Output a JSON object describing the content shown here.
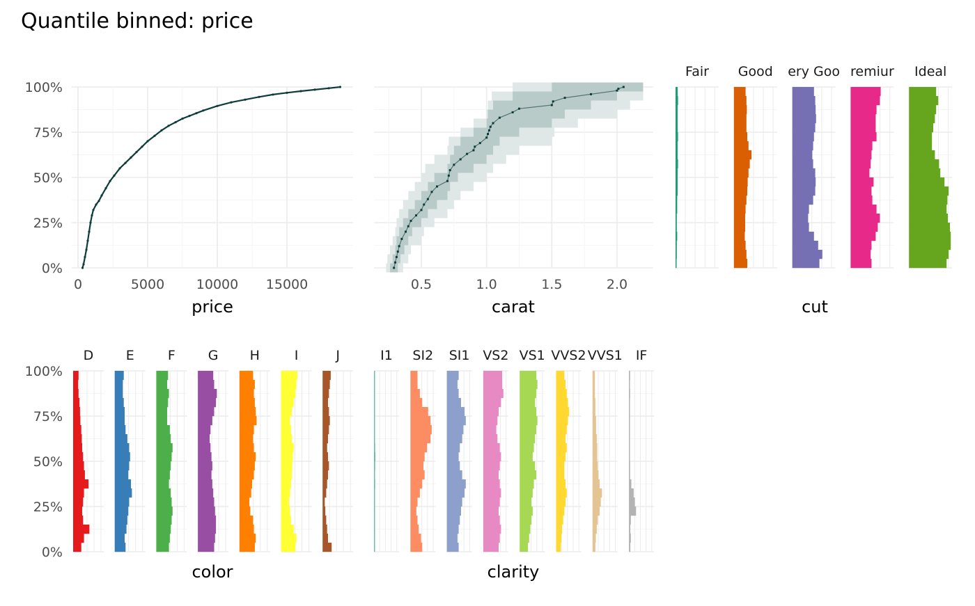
{
  "title": "Quantile binned: price",
  "colors": {
    "ink": "#0d3b3b",
    "ribbon_light": "#dfe8e6",
    "ribbon_mid": "#b3c6c3",
    "grid_major": "#ebebeb",
    "grid_minor": "#f5f5f5",
    "cut": [
      "#1b9e77",
      "#d95f02",
      "#7570b3",
      "#e7298a",
      "#66a61e"
    ],
    "color": [
      "#e41a1c",
      "#377eb8",
      "#4daf4a",
      "#984ea3",
      "#ff7f00",
      "#ffff33",
      "#a65628"
    ],
    "clarity": [
      "#66c2a5",
      "#fc8d62",
      "#8da0cb",
      "#e78ac3",
      "#a6d854",
      "#ffd92f",
      "#e5c494",
      "#b3b3b3"
    ]
  },
  "chart_data": [
    {
      "type": "line",
      "panel": "price",
      "xlabel": "price",
      "ylabel": "",
      "xlim": [
        0,
        19000
      ],
      "ylim": [
        0,
        1
      ],
      "x_ticks": [
        0,
        5000,
        10000,
        15000
      ],
      "x_tick_labels": [
        "0",
        "5000",
        "10000",
        "15000"
      ],
      "y_ticks": [
        0,
        0.25,
        0.5,
        0.75,
        1
      ],
      "y_tick_labels": [
        "0%",
        "25%",
        "50%",
        "75%",
        "100%"
      ],
      "x": [
        326,
        400,
        500,
        600,
        700,
        800,
        900,
        1000,
        1100,
        1300,
        1500,
        1700,
        2000,
        2300,
        2600,
        3000,
        3400,
        3800,
        4200,
        4600,
        5000,
        5500,
        6000,
        6500,
        7000,
        7500,
        8000,
        8500,
        9000,
        10000,
        11000,
        12000,
        13000,
        14000,
        15000,
        16000,
        17000,
        18000,
        18823
      ],
      "y": [
        0,
        0.02,
        0.06,
        0.1,
        0.15,
        0.2,
        0.25,
        0.29,
        0.32,
        0.35,
        0.37,
        0.4,
        0.44,
        0.48,
        0.51,
        0.55,
        0.58,
        0.61,
        0.64,
        0.67,
        0.7,
        0.73,
        0.76,
        0.785,
        0.805,
        0.825,
        0.84,
        0.855,
        0.87,
        0.895,
        0.915,
        0.93,
        0.945,
        0.958,
        0.968,
        0.977,
        0.985,
        0.993,
        1
      ]
    },
    {
      "type": "scatter",
      "panel": "carat",
      "xlabel": "carat",
      "ylabel": "",
      "xlim": [
        0.2,
        2.3
      ],
      "ylim": [
        0,
        1
      ],
      "x_ticks": [
        0.5,
        1.0,
        1.5,
        2.0
      ],
      "x_tick_labels": [
        "0.5",
        "1.0",
        "1.5",
        "2.0"
      ],
      "median_x": [
        0.29,
        0.3,
        0.31,
        0.32,
        0.33,
        0.35,
        0.38,
        0.4,
        0.42,
        0.46,
        0.5,
        0.52,
        0.55,
        0.58,
        0.62,
        0.7,
        0.71,
        0.72,
        0.75,
        0.8,
        0.85,
        0.9,
        0.91,
        0.95,
        1.0,
        1.01,
        1.02,
        1.03,
        1.05,
        1.1,
        1.2,
        1.25,
        1.5,
        1.51,
        1.6,
        1.8,
        2.0,
        2.01,
        2.05
      ],
      "median_y": [
        0,
        0.03,
        0.06,
        0.09,
        0.12,
        0.16,
        0.2,
        0.23,
        0.26,
        0.29,
        0.32,
        0.35,
        0.38,
        0.42,
        0.45,
        0.48,
        0.51,
        0.54,
        0.57,
        0.6,
        0.63,
        0.65,
        0.67,
        0.69,
        0.72,
        0.74,
        0.76,
        0.78,
        0.8,
        0.83,
        0.86,
        0.88,
        0.9,
        0.92,
        0.94,
        0.96,
        0.98,
        0.99,
        1
      ],
      "band50_lo": [
        0.26,
        0.28,
        0.3,
        0.31,
        0.33,
        0.36,
        0.4,
        0.45,
        0.5,
        0.55,
        0.6,
        0.7,
        0.72,
        0.75,
        0.8,
        0.9,
        1.0,
        1.01,
        1.05,
        1.2,
        1.5
      ],
      "band50_hi": [
        0.32,
        0.34,
        0.37,
        0.4,
        0.43,
        0.5,
        0.55,
        0.62,
        0.7,
        0.72,
        0.78,
        0.9,
        1.0,
        1.05,
        1.1,
        1.25,
        1.5,
        1.6,
        1.8,
        2.0,
        2.2
      ],
      "band90_lo": [
        0.23,
        0.24,
        0.26,
        0.28,
        0.3,
        0.31,
        0.33,
        0.36,
        0.4,
        0.45,
        0.5,
        0.53,
        0.6,
        0.7,
        0.71,
        0.8,
        0.9,
        1.0,
        1.01,
        1.04,
        1.2
      ],
      "band90_hi": [
        0.36,
        0.4,
        0.42,
        0.5,
        0.52,
        0.6,
        0.7,
        0.75,
        0.8,
        0.9,
        1.0,
        1.05,
        1.15,
        1.25,
        1.5,
        1.52,
        1.7,
        2.0,
        2.1,
        2.2,
        2.2
      ],
      "band_y": [
        0,
        0.05,
        0.1,
        0.15,
        0.2,
        0.25,
        0.3,
        0.35,
        0.4,
        0.45,
        0.5,
        0.55,
        0.6,
        0.65,
        0.7,
        0.75,
        0.8,
        0.85,
        0.9,
        0.95,
        1
      ]
    },
    {
      "type": "bar",
      "panel": "cut",
      "xlabel": "cut",
      "categories": [
        "Fair",
        "Good",
        "Very Good",
        "Premium",
        "Ideal"
      ],
      "strip_labels": [
        "Fair",
        "Good",
        "ery Goo",
        "remiur",
        "Ideal"
      ],
      "y_bins": [
        0,
        0.05,
        0.1,
        0.15,
        0.2,
        0.25,
        0.3,
        0.35,
        0.4,
        0.45,
        0.5,
        0.55,
        0.6,
        0.65,
        0.7,
        0.75,
        0.8,
        0.85,
        0.9,
        0.95
      ],
      "max_share": 1,
      "shares": [
        [
          0.02,
          0.03,
          0.03,
          0.04,
          0.03,
          0.03,
          0.04,
          0.04,
          0.05,
          0.05,
          0.05,
          0.06,
          0.05,
          0.05,
          0.06,
          0.05,
          0.05,
          0.05,
          0.06,
          0.05
        ],
        [
          0.32,
          0.3,
          0.28,
          0.26,
          0.27,
          0.27,
          0.28,
          0.3,
          0.32,
          0.33,
          0.35,
          0.38,
          0.42,
          0.35,
          0.32,
          0.3,
          0.3,
          0.31,
          0.3,
          0.28
        ],
        [
          0.65,
          0.72,
          0.62,
          0.52,
          0.4,
          0.38,
          0.4,
          0.5,
          0.55,
          0.56,
          0.55,
          0.5,
          0.48,
          0.5,
          0.52,
          0.55,
          0.57,
          0.56,
          0.55,
          0.52
        ],
        [
          0.5,
          0.48,
          0.5,
          0.6,
          0.65,
          0.7,
          0.62,
          0.52,
          0.5,
          0.55,
          0.45,
          0.48,
          0.5,
          0.52,
          0.62,
          0.6,
          0.6,
          0.62,
          0.7,
          0.72
        ],
        [
          0.9,
          0.95,
          1.0,
          1.0,
          0.98,
          0.93,
          0.9,
          0.92,
          0.95,
          0.85,
          0.75,
          0.72,
          0.62,
          0.55,
          0.55,
          0.58,
          0.62,
          0.65,
          0.7,
          0.65
        ]
      ]
    },
    {
      "type": "bar",
      "panel": "color",
      "xlabel": "color",
      "categories": [
        "D",
        "E",
        "F",
        "G",
        "H",
        "I",
        "J"
      ],
      "strip_labels": [
        "D",
        "E",
        "F",
        "G",
        "H",
        "I",
        "J"
      ],
      "y_bins": [
        0,
        0.05,
        0.1,
        0.15,
        0.2,
        0.25,
        0.3,
        0.35,
        0.4,
        0.45,
        0.5,
        0.55,
        0.6,
        0.65,
        0.7,
        0.75,
        0.8,
        0.85,
        0.9,
        0.95
      ],
      "max_share": 1,
      "shares": [
        [
          0.45,
          0.6,
          0.9,
          0.55,
          0.5,
          0.55,
          0.6,
          0.85,
          0.65,
          0.6,
          0.55,
          0.5,
          0.48,
          0.45,
          0.4,
          0.38,
          0.35,
          0.3,
          0.28,
          0.3
        ],
        [
          0.6,
          0.55,
          0.65,
          0.7,
          0.75,
          0.8,
          0.95,
          0.9,
          0.75,
          0.8,
          0.85,
          0.8,
          0.7,
          0.6,
          0.55,
          0.55,
          0.5,
          0.45,
          0.45,
          0.5
        ],
        [
          0.7,
          0.75,
          0.8,
          0.85,
          0.9,
          0.85,
          0.8,
          0.7,
          0.75,
          0.8,
          0.85,
          0.9,
          0.8,
          0.75,
          0.6,
          0.6,
          0.65,
          0.7,
          0.6,
          0.65
        ],
        [
          0.9,
          0.95,
          1.0,
          1.0,
          0.95,
          0.9,
          0.85,
          0.8,
          0.75,
          0.8,
          0.75,
          0.7,
          0.65,
          0.7,
          0.8,
          0.9,
          1.0,
          1.05,
          0.9,
          0.85
        ],
        [
          0.85,
          0.9,
          0.8,
          0.75,
          0.6,
          0.55,
          0.65,
          0.7,
          0.8,
          0.85,
          0.9,
          0.8,
          0.75,
          0.8,
          0.95,
          0.9,
          0.85,
          0.8,
          0.85,
          0.75
        ],
        [
          0.8,
          0.85,
          0.7,
          0.55,
          0.5,
          0.45,
          0.5,
          0.55,
          0.6,
          0.62,
          0.65,
          0.7,
          0.6,
          0.55,
          0.5,
          0.6,
          0.7,
          0.8,
          0.85,
          0.9
        ],
        [
          0.5,
          0.3,
          0.25,
          0.2,
          0.15,
          0.12,
          0.2,
          0.25,
          0.3,
          0.35,
          0.3,
          0.25,
          0.3,
          0.35,
          0.4,
          0.35,
          0.3,
          0.35,
          0.4,
          0.45
        ]
      ]
    },
    {
      "type": "bar",
      "panel": "clarity",
      "xlabel": "clarity",
      "categories": [
        "I1",
        "SI2",
        "SI1",
        "VS2",
        "VS1",
        "VVS2",
        "VVS1",
        "IF"
      ],
      "strip_labels": [
        "I1",
        "SI2",
        "SI1",
        "VS2",
        "VS1",
        "VVS2",
        "VVS1",
        "IF"
      ],
      "y_bins": [
        0,
        0.05,
        0.1,
        0.15,
        0.2,
        0.25,
        0.3,
        0.35,
        0.4,
        0.45,
        0.5,
        0.55,
        0.6,
        0.65,
        0.7,
        0.75,
        0.8,
        0.85,
        0.9,
        0.95
      ],
      "max_share": 1,
      "shares": [
        [
          0.03,
          0.03,
          0.02,
          0.03,
          0.03,
          0.04,
          0.04,
          0.05,
          0.04,
          0.05,
          0.06,
          0.05,
          0.04,
          0.04,
          0.03,
          0.03,
          0.03,
          0.04,
          0.03,
          0.03
        ],
        [
          0.5,
          0.45,
          0.35,
          0.3,
          0.25,
          0.3,
          0.4,
          0.5,
          0.6,
          0.55,
          0.6,
          0.7,
          0.85,
          0.9,
          0.85,
          0.75,
          0.5,
          0.4,
          0.3,
          0.3
        ],
        [
          0.5,
          0.45,
          0.5,
          0.55,
          0.6,
          0.65,
          0.75,
          0.8,
          0.65,
          0.55,
          0.5,
          0.55,
          0.65,
          0.7,
          0.8,
          0.75,
          0.6,
          0.5,
          0.45,
          0.5
        ],
        [
          0.65,
          0.7,
          0.75,
          0.7,
          0.65,
          0.7,
          0.75,
          0.7,
          0.65,
          0.7,
          0.75,
          0.7,
          0.6,
          0.55,
          0.6,
          0.65,
          0.75,
          0.85,
          0.8,
          0.8
        ],
        [
          0.35,
          0.4,
          0.45,
          0.5,
          0.55,
          0.5,
          0.55,
          0.6,
          0.7,
          0.65,
          0.55,
          0.6,
          0.65,
          0.7,
          0.75,
          0.7,
          0.65,
          0.7,
          0.75,
          0.7
        ],
        [
          0.2,
          0.22,
          0.25,
          0.3,
          0.35,
          0.4,
          0.45,
          0.4,
          0.35,
          0.35,
          0.4,
          0.45,
          0.4,
          0.45,
          0.5,
          0.55,
          0.5,
          0.45,
          0.4,
          0.35
        ],
        [
          0.12,
          0.14,
          0.18,
          0.22,
          0.3,
          0.35,
          0.4,
          0.3,
          0.25,
          0.22,
          0.2,
          0.2,
          0.18,
          0.15,
          0.15,
          0.12,
          0.12,
          0.1,
          0.1,
          0.1
        ],
        [
          0.06,
          0.08,
          0.06,
          0.08,
          0.3,
          0.25,
          0.2,
          0.1,
          0.05,
          0.05,
          0.04,
          0.03,
          0.04,
          0.03,
          0.03,
          0.04,
          0.03,
          0.05,
          0.04,
          0.05
        ]
      ]
    }
  ]
}
